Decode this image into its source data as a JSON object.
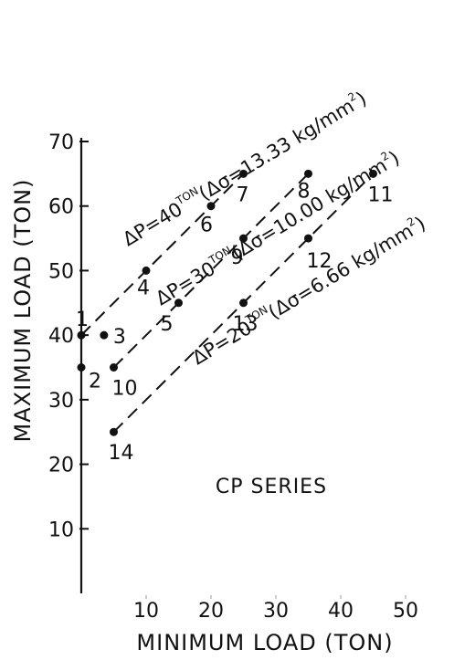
{
  "chart_data": {
    "type": "line",
    "xlabel": "MINIMUM LOAD (TON)",
    "ylabel": "MAXIMUM LOAD (TON)",
    "xlim": [
      0,
      50
    ],
    "ylim": [
      0,
      70
    ],
    "x_ticks": [
      "10",
      "20",
      "30",
      "40",
      "50"
    ],
    "y_ticks": [
      "10",
      "20",
      "30",
      "40",
      "50",
      "60",
      "70"
    ],
    "grid": false,
    "legend": "none",
    "annotation": "CP SERIES",
    "series": [
      {
        "label": {
          "base": "ΔP=40",
          "unit": "TON",
          "stress": "(Δσ=13.33 kg/mm",
          "exp": "2",
          "close": ")"
        },
        "points": [
          {
            "label": "1",
            "x": 0,
            "y": 40
          },
          {
            "label": "4",
            "x": 10,
            "y": 50
          },
          {
            "label": "6",
            "x": 20,
            "y": 60
          },
          {
            "label": "7",
            "x": 25,
            "y": 65
          }
        ]
      },
      {
        "label": {
          "base": "ΔP=30",
          "unit": "TON",
          "stress": "(Δσ=10.00 kg/mm",
          "exp": "2",
          "close": ")"
        },
        "points": [
          {
            "label": "10",
            "x": 5,
            "y": 35
          },
          {
            "label": "5",
            "x": 15,
            "y": 45
          },
          {
            "label": "9",
            "x": 25,
            "y": 55
          },
          {
            "label": "8",
            "x": 35,
            "y": 65
          }
        ]
      },
      {
        "label": {
          "base": "ΔP=20",
          "unit": "TON",
          "stress": "(Δσ=6.66 kg/mm",
          "exp": "2",
          "close": ")"
        },
        "points": [
          {
            "label": "14",
            "x": 5,
            "y": 25
          },
          {
            "label": "13",
            "x": 25,
            "y": 45
          },
          {
            "label": "12",
            "x": 35,
            "y": 55
          },
          {
            "label": "11",
            "x": 45,
            "y": 65
          }
        ]
      }
    ],
    "extra_points": [
      {
        "label": "2",
        "x": 0,
        "y": 35
      },
      {
        "label": "3",
        "x": 3.5,
        "y": 40
      }
    ]
  }
}
